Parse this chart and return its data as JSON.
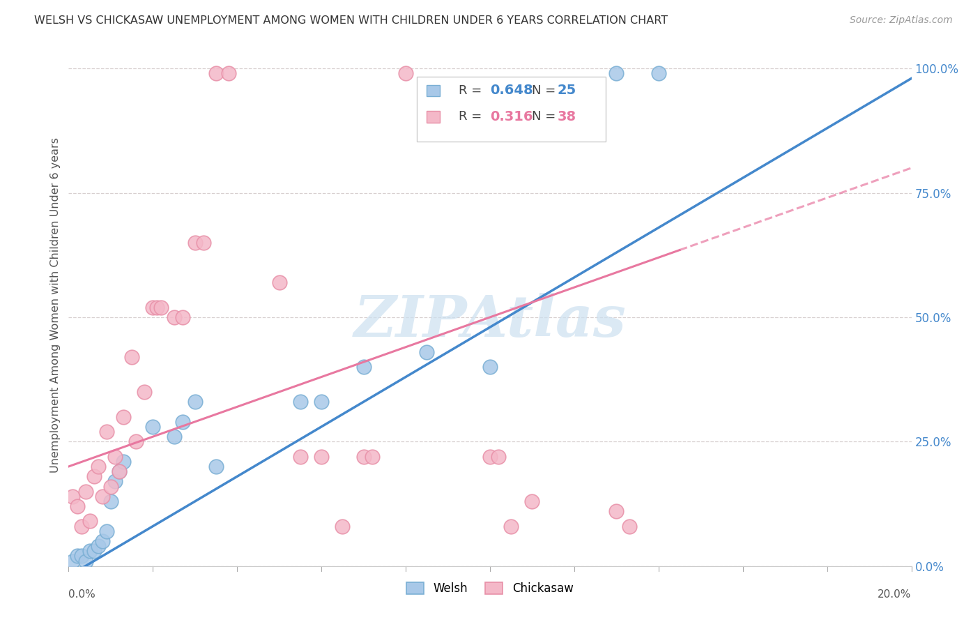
{
  "title": "WELSH VS CHICKASAW UNEMPLOYMENT AMONG WOMEN WITH CHILDREN UNDER 6 YEARS CORRELATION CHART",
  "source": "Source: ZipAtlas.com",
  "ylabel": "Unemployment Among Women with Children Under 6 years",
  "welsh_R": "0.648",
  "welsh_N": "25",
  "chickasaw_R": "0.316",
  "chickasaw_N": "38",
  "welsh_color": "#a8c8e8",
  "welsh_edge_color": "#7aafd4",
  "chickasaw_color": "#f4b8c8",
  "chickasaw_edge_color": "#e890a8",
  "welsh_line_color": "#4488cc",
  "chickasaw_line_color": "#e878a0",
  "background_color": "#ffffff",
  "grid_color": "#d8d0d0",
  "watermark_color": "#cce0f0",
  "welsh_points": [
    [
      0.001,
      0.01
    ],
    [
      0.002,
      0.02
    ],
    [
      0.003,
      0.02
    ],
    [
      0.004,
      0.01
    ],
    [
      0.005,
      0.03
    ],
    [
      0.006,
      0.03
    ],
    [
      0.007,
      0.04
    ],
    [
      0.008,
      0.05
    ],
    [
      0.009,
      0.07
    ],
    [
      0.01,
      0.13
    ],
    [
      0.011,
      0.17
    ],
    [
      0.012,
      0.19
    ],
    [
      0.013,
      0.21
    ],
    [
      0.02,
      0.28
    ],
    [
      0.025,
      0.26
    ],
    [
      0.027,
      0.29
    ],
    [
      0.03,
      0.33
    ],
    [
      0.035,
      0.2
    ],
    [
      0.055,
      0.33
    ],
    [
      0.06,
      0.33
    ],
    [
      0.07,
      0.4
    ],
    [
      0.085,
      0.43
    ],
    [
      0.1,
      0.4
    ],
    [
      0.13,
      0.99
    ],
    [
      0.14,
      0.99
    ]
  ],
  "chickasaw_points": [
    [
      0.001,
      0.14
    ],
    [
      0.002,
      0.12
    ],
    [
      0.003,
      0.08
    ],
    [
      0.004,
      0.15
    ],
    [
      0.005,
      0.09
    ],
    [
      0.006,
      0.18
    ],
    [
      0.007,
      0.2
    ],
    [
      0.008,
      0.14
    ],
    [
      0.009,
      0.27
    ],
    [
      0.01,
      0.16
    ],
    [
      0.011,
      0.22
    ],
    [
      0.012,
      0.19
    ],
    [
      0.013,
      0.3
    ],
    [
      0.015,
      0.42
    ],
    [
      0.016,
      0.25
    ],
    [
      0.018,
      0.35
    ],
    [
      0.02,
      0.52
    ],
    [
      0.021,
      0.52
    ],
    [
      0.022,
      0.52
    ],
    [
      0.025,
      0.5
    ],
    [
      0.027,
      0.5
    ],
    [
      0.03,
      0.65
    ],
    [
      0.032,
      0.65
    ],
    [
      0.035,
      0.99
    ],
    [
      0.038,
      0.99
    ],
    [
      0.05,
      0.57
    ],
    [
      0.055,
      0.22
    ],
    [
      0.06,
      0.22
    ],
    [
      0.065,
      0.08
    ],
    [
      0.07,
      0.22
    ],
    [
      0.072,
      0.22
    ],
    [
      0.1,
      0.22
    ],
    [
      0.102,
      0.22
    ],
    [
      0.105,
      0.08
    ],
    [
      0.11,
      0.13
    ],
    [
      0.13,
      0.11
    ],
    [
      0.133,
      0.08
    ],
    [
      0.08,
      0.99
    ]
  ],
  "yticks": [
    0.0,
    0.25,
    0.5,
    0.75,
    1.0
  ],
  "ytick_labels": [
    "0.0%",
    "25.0%",
    "50.0%",
    "75.0%",
    "100.0%"
  ],
  "xlim": [
    0.0,
    0.2
  ],
  "ylim": [
    0.0,
    1.05
  ]
}
